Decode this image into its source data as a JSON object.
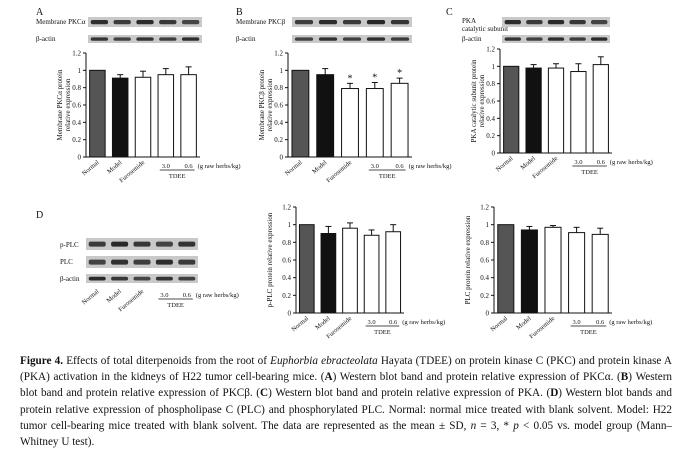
{
  "caption": {
    "label": "Figure 4.",
    "intro": "Effects of total diterpenoids from the root of ",
    "species": "Euphorbia ebracteolata",
    "text1": " Hayata (TDEE) on protein kinase C (PKC) and protein kinase A (PKA) activation in the kidneys of H22 tumor cell-bearing mice. (",
    "tagA": "A",
    "textA": ") Western blot band and protein relative expression of PKCα. (",
    "tagB": "B",
    "textB": ") Western blot band and protein relative expression of PKCβ. (",
    "tagC": "C",
    "textC": ") Western blot band and protein relative expression of PKA. (",
    "tagD": "D",
    "textD": ") Western blot bands and protein relative expression of phospholipase C (PLC) and phosphorylated PLC. Normal: normal mice treated with blank solvent. Model: H22 tumor cell-bearing mice treated with blank solvent. The data are represented as the mean ± SD, ",
    "n": "n",
    "textN": " = 3, * ",
    "p": "p",
    "textEnd": " < 0.05 vs. model group (Mann–Whitney U test)."
  },
  "groups": [
    "Normal",
    "Model",
    "Furosemide",
    "3.0",
    "0.6"
  ],
  "dose_unit": "(g raw herbs/kg)",
  "tdee_label": "TDEE",
  "colors": {
    "normal": "#555555",
    "model": "#111111",
    "other": "#ffffff"
  },
  "panels": {
    "A": {
      "letter": "A",
      "blot_labels": [
        "Membrane PKCα",
        "β-actin"
      ]
    },
    "B": {
      "letter": "B",
      "blot_labels": [
        "Membrane PKCβ",
        "β-actin"
      ]
    },
    "C": {
      "letter": "C",
      "blot_labels": [
        "PKA\ncatalytic subunit",
        "β-actin"
      ]
    },
    "D": {
      "letter": "D",
      "blot_labels": [
        "p-PLC",
        "PLC",
        "β-actin"
      ]
    }
  },
  "chart_data": [
    {
      "panel": "A",
      "type": "bar",
      "categories": [
        "Normal",
        "Model",
        "Furosemide",
        "3.0",
        "0.6"
      ],
      "values": [
        1.0,
        0.91,
        0.92,
        0.95,
        0.95
      ],
      "errors": [
        0,
        0.04,
        0.07,
        0.07,
        0.09
      ],
      "significant": [
        false,
        false,
        false,
        false,
        false
      ],
      "ylabel": "Membrane PKCα protein\nrelative expression",
      "ylim": [
        0,
        1.2
      ],
      "yticks": [
        "0",
        "0.2",
        "0.4",
        "0.6",
        "0.8",
        "1",
        "1.2"
      ]
    },
    {
      "panel": "B",
      "type": "bar",
      "categories": [
        "Normal",
        "Model",
        "Furosemide",
        "3.0",
        "0.6"
      ],
      "values": [
        1.0,
        0.95,
        0.79,
        0.79,
        0.85
      ],
      "errors": [
        0,
        0.07,
        0.06,
        0.07,
        0.06
      ],
      "significant": [
        false,
        false,
        true,
        true,
        true
      ],
      "ylabel": "Membrane PKCβ protein\nrelative expression",
      "ylim": [
        0,
        1.2
      ],
      "yticks": [
        "0",
        "0.2",
        "0.4",
        "0.6",
        "0.8",
        "1",
        "1.2"
      ]
    },
    {
      "panel": "C",
      "type": "bar",
      "categories": [
        "Normal",
        "Model",
        "Furosemide",
        "3.0",
        "0.6"
      ],
      "values": [
        1.0,
        0.98,
        0.98,
        0.94,
        1.02
      ],
      "errors": [
        0,
        0.04,
        0.05,
        0.09,
        0.09
      ],
      "significant": [
        false,
        false,
        false,
        false,
        false
      ],
      "ylabel": "PKA catalytic subunit protein\nrelative expression",
      "ylim": [
        0,
        1.2
      ],
      "yticks": [
        "0",
        "0.2",
        "0.4",
        "0.6",
        "0.8",
        "1",
        "1.2"
      ]
    },
    {
      "panel": "D-pPLC",
      "type": "bar",
      "categories": [
        "Normal",
        "Model",
        "Furosemide",
        "3.0",
        "0.6"
      ],
      "values": [
        1.0,
        0.9,
        0.96,
        0.88,
        0.92
      ],
      "errors": [
        0,
        0.08,
        0.06,
        0.06,
        0.08
      ],
      "significant": [
        false,
        false,
        false,
        false,
        false
      ],
      "ylabel": "p-PLC protein relative expression",
      "ylim": [
        0,
        1.2
      ],
      "yticks": [
        "0",
        "0.2",
        "0.4",
        "0.6",
        "0.8",
        "1",
        "1.2"
      ]
    },
    {
      "panel": "D-PLC",
      "type": "bar",
      "categories": [
        "Normal",
        "Model",
        "Furosemide",
        "3.0",
        "0.6"
      ],
      "values": [
        1.0,
        0.94,
        0.97,
        0.91,
        0.89
      ],
      "errors": [
        0,
        0.04,
        0.02,
        0.06,
        0.07
      ],
      "significant": [
        false,
        false,
        false,
        false,
        false
      ],
      "ylabel": "PLC protein relative expression",
      "ylim": [
        0,
        1.2
      ],
      "yticks": [
        "0",
        "0.2",
        "0.4",
        "0.6",
        "0.8",
        "1",
        "1.2"
      ]
    }
  ]
}
